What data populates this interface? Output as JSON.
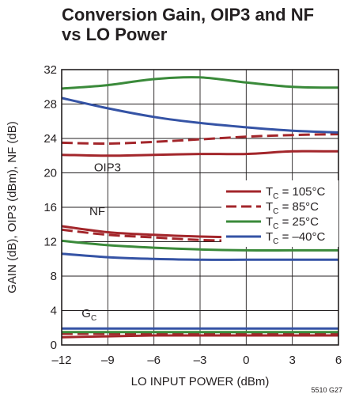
{
  "chart_data": {
    "type": "line",
    "title_lines": [
      "Conversion Gain, OIP3 and NF",
      "vs LO Power"
    ],
    "xlabel": "LO INPUT POWER (dBm)",
    "ylabel": "GAIN (dB), OIP3 (dBm), NF (dB)",
    "xlim": [
      -12,
      6
    ],
    "ylim": [
      0,
      32
    ],
    "xticks": [
      -12,
      -9,
      -6,
      -3,
      0,
      3,
      6
    ],
    "yticks": [
      0,
      4,
      8,
      12,
      16,
      20,
      24,
      28,
      32
    ],
    "xtick_labels": [
      "–12",
      "–9",
      "–6",
      "–3",
      "0",
      "3",
      "6"
    ],
    "grid": true,
    "annotations": [
      {
        "text": "OIP3",
        "x": -9.9,
        "y": 20.2
      },
      {
        "text": "NF",
        "x": -10.2,
        "y": 15.1
      },
      {
        "text": "G",
        "sub": "C",
        "x": -10.7,
        "y": 3.2
      }
    ],
    "legend": {
      "placement": "center-right",
      "entries": [
        {
          "prefix": "T",
          "sub": "C",
          "suffix": " = 105°C",
          "color": "#a3262b",
          "dash": "solid"
        },
        {
          "prefix": "T",
          "sub": "C",
          "suffix": " = 85°C",
          "color": "#a3262b",
          "dash": "dashed"
        },
        {
          "prefix": "T",
          "sub": "C",
          "suffix": " = 25°C",
          "color": "#3a8a3a",
          "dash": "solid"
        },
        {
          "prefix": "T",
          "sub": "C",
          "suffix": " = –40°C",
          "color": "#3553a5",
          "dash": "solid"
        }
      ]
    },
    "series": [
      {
        "group": "OIP3",
        "temp_index": 0,
        "x": [
          -12,
          -9,
          -6,
          -3,
          0,
          3,
          6
        ],
        "y": [
          22.1,
          22.0,
          22.1,
          22.2,
          22.2,
          22.5,
          22.5
        ]
      },
      {
        "group": "OIP3",
        "temp_index": 1,
        "x": [
          -12,
          -9,
          -6,
          -3,
          0,
          3,
          6
        ],
        "y": [
          23.5,
          23.4,
          23.6,
          23.9,
          24.2,
          24.4,
          24.5
        ]
      },
      {
        "group": "OIP3",
        "temp_index": 2,
        "x": [
          -12,
          -9,
          -6,
          -3,
          0,
          3,
          6
        ],
        "y": [
          29.8,
          30.2,
          30.9,
          31.1,
          30.5,
          30.0,
          29.9
        ]
      },
      {
        "group": "OIP3",
        "temp_index": 3,
        "x": [
          -12,
          -9,
          -6,
          -3,
          0,
          3,
          6
        ],
        "y": [
          28.7,
          27.5,
          26.5,
          25.8,
          25.3,
          24.9,
          24.7
        ]
      },
      {
        "group": "NF",
        "temp_index": 0,
        "x": [
          -12,
          -9,
          -6,
          -3,
          0,
          3,
          6
        ],
        "y": [
          13.8,
          13.1,
          12.8,
          12.6,
          12.5,
          12.5,
          12.5
        ]
      },
      {
        "group": "NF",
        "temp_index": 1,
        "x": [
          -12,
          -9,
          -6,
          -3,
          0,
          3,
          6
        ],
        "y": [
          13.4,
          12.8,
          12.5,
          12.2,
          12.1,
          12.1,
          12.1
        ]
      },
      {
        "group": "NF",
        "temp_index": 2,
        "x": [
          -12,
          -9,
          -6,
          -3,
          0,
          3,
          6
        ],
        "y": [
          12.1,
          11.6,
          11.3,
          11.1,
          11.0,
          11.0,
          11.0
        ]
      },
      {
        "group": "NF",
        "temp_index": 3,
        "x": [
          -12,
          -9,
          -6,
          -3,
          0,
          3,
          6
        ],
        "y": [
          10.6,
          10.2,
          10.0,
          9.9,
          9.9,
          9.9,
          9.9
        ]
      },
      {
        "group": "GC",
        "temp_index": 0,
        "x": [
          -12,
          -9,
          -6,
          -3,
          0,
          3,
          6
        ],
        "y": [
          0.9,
          1.0,
          1.1,
          1.1,
          1.1,
          1.1,
          1.1
        ]
      },
      {
        "group": "GC",
        "temp_index": 1,
        "x": [
          -12,
          -9,
          -6,
          -3,
          0,
          3,
          6
        ],
        "y": [
          1.3,
          1.3,
          1.3,
          1.3,
          1.3,
          1.3,
          1.3
        ]
      },
      {
        "group": "GC",
        "temp_index": 2,
        "x": [
          -12,
          -9,
          -6,
          -3,
          0,
          3,
          6
        ],
        "y": [
          1.5,
          1.5,
          1.5,
          1.5,
          1.5,
          1.5,
          1.5
        ]
      },
      {
        "group": "GC",
        "temp_index": 3,
        "x": [
          -12,
          -9,
          -6,
          -3,
          0,
          3,
          6
        ],
        "y": [
          1.9,
          1.9,
          1.9,
          1.9,
          1.9,
          1.9,
          1.9
        ]
      }
    ],
    "figure_code": "5510 G27"
  }
}
